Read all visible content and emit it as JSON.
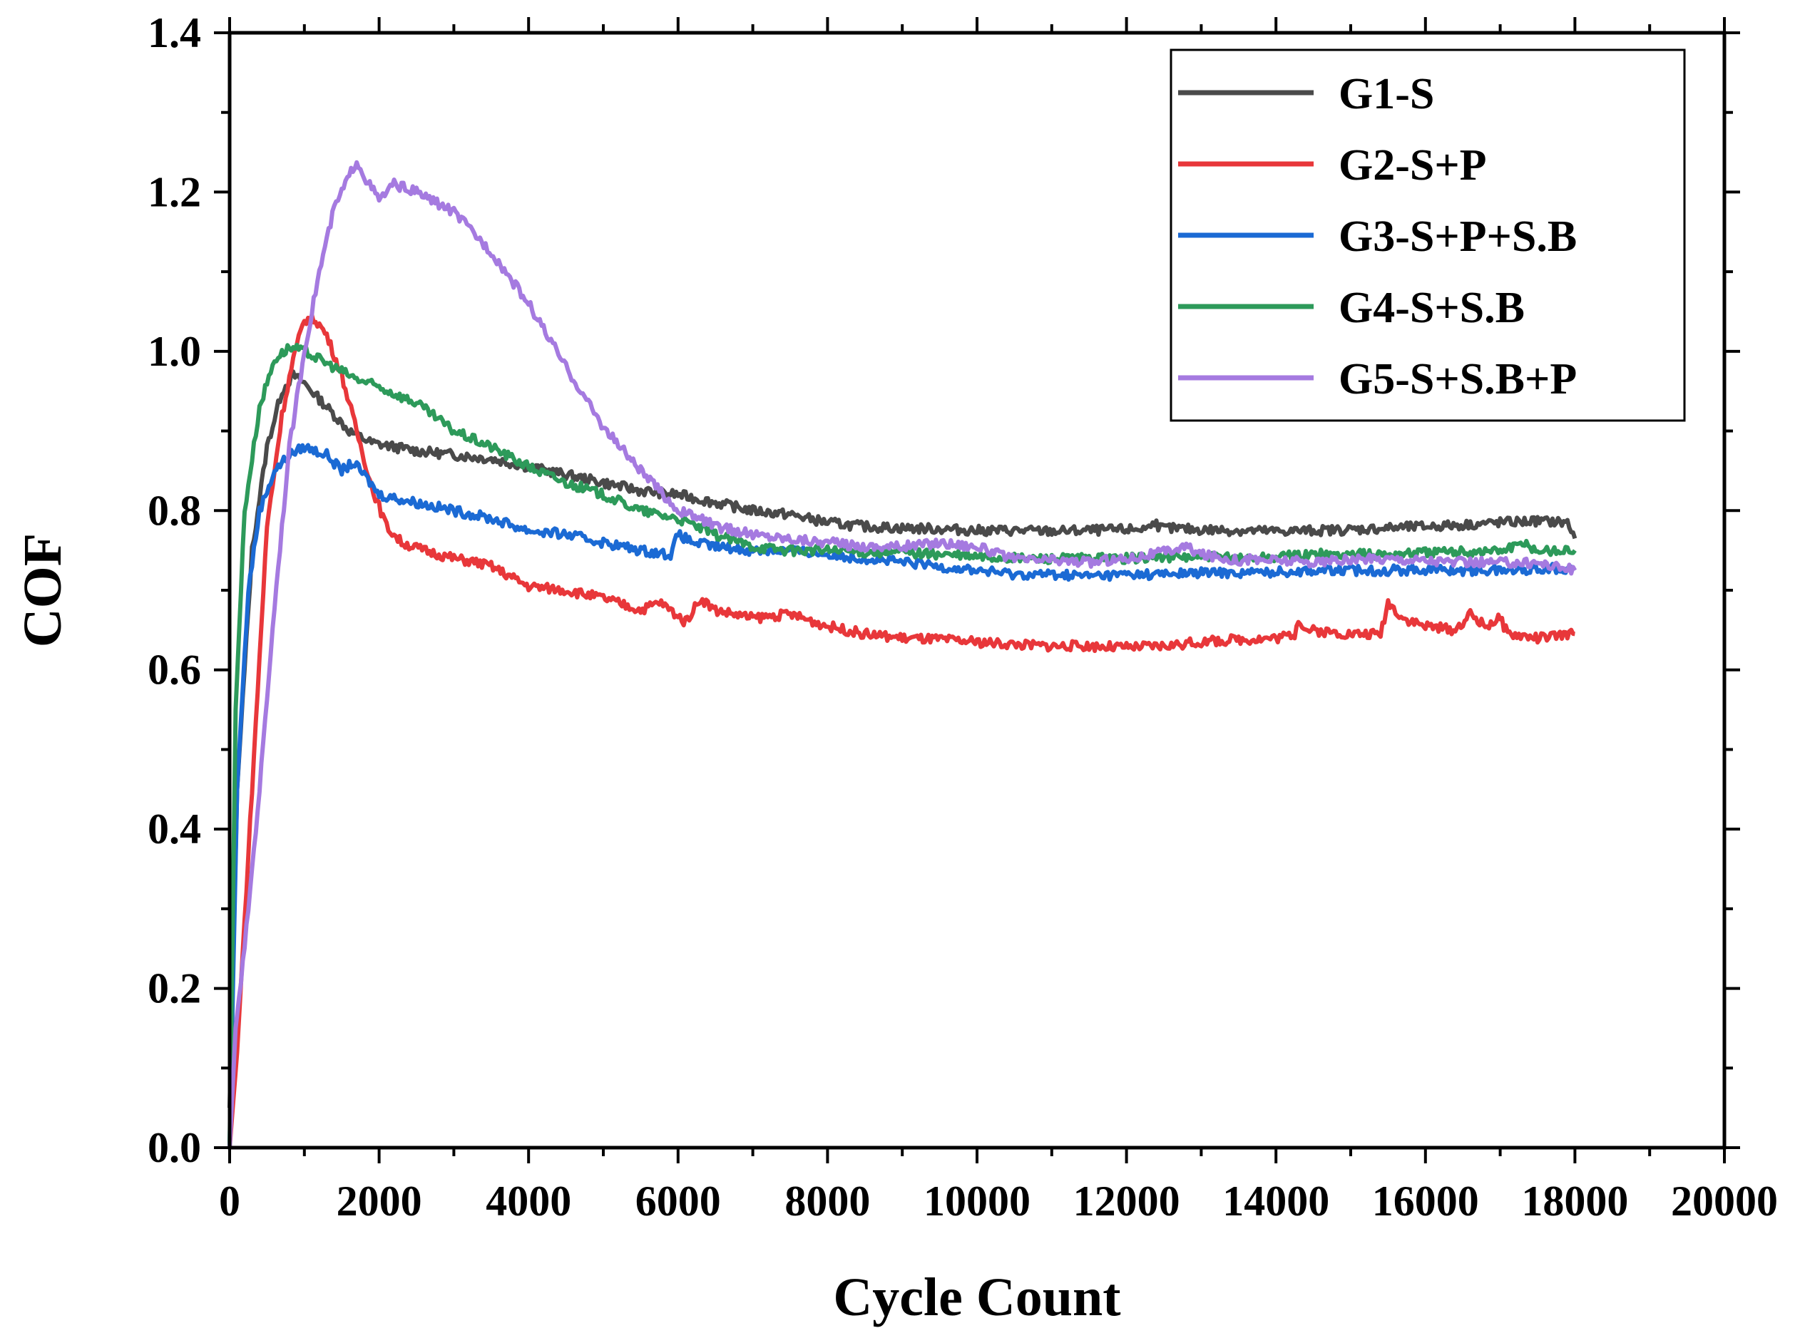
{
  "chart_data": {
    "type": "line",
    "title": "",
    "xlabel": "Cycle Count",
    "ylabel": "COF",
    "xlim": [
      0,
      20000
    ],
    "ylim": [
      0.0,
      1.4
    ],
    "xticks": [
      0,
      2000,
      4000,
      6000,
      8000,
      10000,
      12000,
      14000,
      16000,
      18000,
      20000
    ],
    "yticks": [
      "0.0",
      "0.2",
      "0.4",
      "0.6",
      "0.8",
      "1.0",
      "1.2",
      "1.4"
    ],
    "grid": false,
    "legend_position": "top-right",
    "series": [
      {
        "name": "G1-S",
        "color": "#4a4a4a",
        "points": [
          [
            0,
            0.05
          ],
          [
            100,
            0.45
          ],
          [
            300,
            0.75
          ],
          [
            500,
            0.88
          ],
          [
            700,
            0.95
          ],
          [
            850,
            0.97
          ],
          [
            1000,
            0.96
          ],
          [
            1300,
            0.93
          ],
          [
            1600,
            0.9
          ],
          [
            1900,
            0.885
          ],
          [
            2200,
            0.88
          ],
          [
            2500,
            0.875
          ],
          [
            3000,
            0.87
          ],
          [
            3500,
            0.865
          ],
          [
            4000,
            0.855
          ],
          [
            4500,
            0.845
          ],
          [
            5000,
            0.835
          ],
          [
            5500,
            0.825
          ],
          [
            6000,
            0.82
          ],
          [
            6500,
            0.81
          ],
          [
            7000,
            0.8
          ],
          [
            7500,
            0.795
          ],
          [
            8000,
            0.785
          ],
          [
            8500,
            0.78
          ],
          [
            9000,
            0.778
          ],
          [
            9500,
            0.777
          ],
          [
            10000,
            0.775
          ],
          [
            10500,
            0.775
          ],
          [
            11000,
            0.774
          ],
          [
            11500,
            0.775
          ],
          [
            12000,
            0.776
          ],
          [
            12300,
            0.778
          ],
          [
            12350,
            0.79
          ],
          [
            12450,
            0.778
          ],
          [
            13000,
            0.776
          ],
          [
            13500,
            0.775
          ],
          [
            14000,
            0.774
          ],
          [
            14500,
            0.775
          ],
          [
            15000,
            0.776
          ],
          [
            15500,
            0.778
          ],
          [
            16000,
            0.78
          ],
          [
            16500,
            0.782
          ],
          [
            17000,
            0.785
          ],
          [
            17500,
            0.787
          ],
          [
            17900,
            0.785
          ],
          [
            18000,
            0.765
          ]
        ]
      },
      {
        "name": "G2-S+P",
        "color": "#e8373a",
        "points": [
          [
            0,
            0.0
          ],
          [
            100,
            0.12
          ],
          [
            300,
            0.45
          ],
          [
            500,
            0.78
          ],
          [
            700,
            0.92
          ],
          [
            850,
            0.99
          ],
          [
            1000,
            1.04
          ],
          [
            1150,
            1.04
          ],
          [
            1300,
            1.02
          ],
          [
            1500,
            0.97
          ],
          [
            1700,
            0.9
          ],
          [
            1900,
            0.83
          ],
          [
            2100,
            0.78
          ],
          [
            2300,
            0.76
          ],
          [
            2600,
            0.75
          ],
          [
            3000,
            0.74
          ],
          [
            3300,
            0.735
          ],
          [
            3500,
            0.73
          ],
          [
            3700,
            0.72
          ],
          [
            4000,
            0.705
          ],
          [
            4500,
            0.7
          ],
          [
            5000,
            0.69
          ],
          [
            5500,
            0.675
          ],
          [
            5750,
            0.685
          ],
          [
            5900,
            0.675
          ],
          [
            6100,
            0.66
          ],
          [
            6300,
            0.69
          ],
          [
            6500,
            0.675
          ],
          [
            7000,
            0.665
          ],
          [
            7500,
            0.67
          ],
          [
            8000,
            0.655
          ],
          [
            8500,
            0.645
          ],
          [
            9000,
            0.64
          ],
          [
            9500,
            0.638
          ],
          [
            10000,
            0.635
          ],
          [
            10500,
            0.632
          ],
          [
            11000,
            0.63
          ],
          [
            11500,
            0.63
          ],
          [
            12000,
            0.628
          ],
          [
            12500,
            0.63
          ],
          [
            13000,
            0.635
          ],
          [
            13500,
            0.638
          ],
          [
            14000,
            0.64
          ],
          [
            14250,
            0.645
          ],
          [
            14300,
            0.665
          ],
          [
            14400,
            0.65
          ],
          [
            15000,
            0.645
          ],
          [
            15400,
            0.645
          ],
          [
            15500,
            0.685
          ],
          [
            15700,
            0.665
          ],
          [
            16000,
            0.655
          ],
          [
            16400,
            0.65
          ],
          [
            16600,
            0.67
          ],
          [
            16800,
            0.655
          ],
          [
            17000,
            0.665
          ],
          [
            17100,
            0.645
          ],
          [
            17500,
            0.64
          ],
          [
            18000,
            0.645
          ]
        ]
      },
      {
        "name": "G3-S+P+S.B",
        "color": "#1b6ad4",
        "points": [
          [
            0,
            0.0
          ],
          [
            100,
            0.45
          ],
          [
            250,
            0.7
          ],
          [
            400,
            0.8
          ],
          [
            600,
            0.85
          ],
          [
            800,
            0.87
          ],
          [
            1000,
            0.88
          ],
          [
            1300,
            0.87
          ],
          [
            1500,
            0.85
          ],
          [
            1650,
            0.86
          ],
          [
            1800,
            0.845
          ],
          [
            2000,
            0.82
          ],
          [
            2500,
            0.81
          ],
          [
            3000,
            0.8
          ],
          [
            3500,
            0.79
          ],
          [
            4000,
            0.775
          ],
          [
            4500,
            0.77
          ],
          [
            5000,
            0.76
          ],
          [
            5500,
            0.75
          ],
          [
            5900,
            0.745
          ],
          [
            6000,
            0.77
          ],
          [
            6200,
            0.76
          ],
          [
            6500,
            0.755
          ],
          [
            7000,
            0.75
          ],
          [
            7500,
            0.75
          ],
          [
            8000,
            0.745
          ],
          [
            8500,
            0.74
          ],
          [
            9000,
            0.735
          ],
          [
            9500,
            0.73
          ],
          [
            10000,
            0.725
          ],
          [
            10500,
            0.72
          ],
          [
            11000,
            0.72
          ],
          [
            11500,
            0.718
          ],
          [
            12000,
            0.72
          ],
          [
            12500,
            0.72
          ],
          [
            13000,
            0.722
          ],
          [
            13500,
            0.722
          ],
          [
            14000,
            0.723
          ],
          [
            14500,
            0.725
          ],
          [
            15000,
            0.725
          ],
          [
            15500,
            0.725
          ],
          [
            16000,
            0.726
          ],
          [
            16500,
            0.725
          ],
          [
            17000,
            0.725
          ],
          [
            17500,
            0.727
          ],
          [
            18000,
            0.728
          ]
        ]
      },
      {
        "name": "G4-S+S.B",
        "color": "#2d9a5a",
        "points": [
          [
            0,
            0.0
          ],
          [
            80,
            0.55
          ],
          [
            200,
            0.8
          ],
          [
            400,
            0.93
          ],
          [
            600,
            0.99
          ],
          [
            800,
            1.005
          ],
          [
            1000,
            1.0
          ],
          [
            1300,
            0.985
          ],
          [
            1700,
            0.965
          ],
          [
            2000,
            0.955
          ],
          [
            2500,
            0.935
          ],
          [
            3000,
            0.9
          ],
          [
            3500,
            0.88
          ],
          [
            4000,
            0.855
          ],
          [
            4500,
            0.835
          ],
          [
            5000,
            0.82
          ],
          [
            5500,
            0.8
          ],
          [
            6000,
            0.79
          ],
          [
            6500,
            0.77
          ],
          [
            7000,
            0.755
          ],
          [
            7500,
            0.75
          ],
          [
            8000,
            0.75
          ],
          [
            8500,
            0.748
          ],
          [
            9000,
            0.748
          ],
          [
            9500,
            0.745
          ],
          [
            10000,
            0.742
          ],
          [
            10500,
            0.74
          ],
          [
            11000,
            0.74
          ],
          [
            11500,
            0.74
          ],
          [
            12000,
            0.74
          ],
          [
            12500,
            0.742
          ],
          [
            13000,
            0.742
          ],
          [
            13500,
            0.74
          ],
          [
            14000,
            0.742
          ],
          [
            14500,
            0.745
          ],
          [
            15000,
            0.745
          ],
          [
            15500,
            0.745
          ],
          [
            16000,
            0.748
          ],
          [
            16500,
            0.748
          ],
          [
            17000,
            0.75
          ],
          [
            17300,
            0.758
          ],
          [
            17500,
            0.75
          ],
          [
            18000,
            0.75
          ]
        ]
      },
      {
        "name": "G5-S+S.B+P",
        "color": "#a57ae0",
        "points": [
          [
            0,
            0.0
          ],
          [
            80,
            0.15
          ],
          [
            200,
            0.25
          ],
          [
            400,
            0.45
          ],
          [
            600,
            0.68
          ],
          [
            800,
            0.88
          ],
          [
            1000,
            1.0
          ],
          [
            1200,
            1.1
          ],
          [
            1400,
            1.18
          ],
          [
            1600,
            1.22
          ],
          [
            1700,
            1.24
          ],
          [
            1800,
            1.22
          ],
          [
            2000,
            1.19
          ],
          [
            2200,
            1.21
          ],
          [
            2500,
            1.2
          ],
          [
            3000,
            1.175
          ],
          [
            3500,
            1.125
          ],
          [
            4000,
            1.06
          ],
          [
            4500,
            0.98
          ],
          [
            5000,
            0.905
          ],
          [
            5500,
            0.85
          ],
          [
            6000,
            0.8
          ],
          [
            6300,
            0.79
          ],
          [
            6500,
            0.78
          ],
          [
            7000,
            0.77
          ],
          [
            7500,
            0.765
          ],
          [
            8000,
            0.76
          ],
          [
            8500,
            0.755
          ],
          [
            9000,
            0.755
          ],
          [
            9500,
            0.76
          ],
          [
            10000,
            0.755
          ],
          [
            10300,
            0.745
          ],
          [
            10500,
            0.738
          ],
          [
            11000,
            0.738
          ],
          [
            11500,
            0.735
          ],
          [
            12000,
            0.74
          ],
          [
            12500,
            0.748
          ],
          [
            12800,
            0.755
          ],
          [
            13000,
            0.745
          ],
          [
            13500,
            0.738
          ],
          [
            14000,
            0.738
          ],
          [
            14500,
            0.735
          ],
          [
            15000,
            0.738
          ],
          [
            15500,
            0.74
          ],
          [
            16000,
            0.738
          ],
          [
            16500,
            0.735
          ],
          [
            17000,
            0.735
          ],
          [
            17500,
            0.735
          ],
          [
            18000,
            0.725
          ]
        ]
      }
    ]
  }
}
